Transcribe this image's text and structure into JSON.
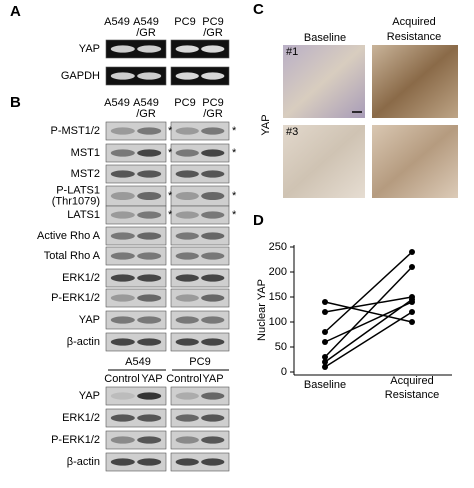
{
  "panel_a": {
    "label": "A",
    "lanes": [
      [
        "A549"
      ],
      [
        "A549",
        "/GR"
      ],
      [
        "PC9"
      ],
      [
        "PC9",
        "/GR"
      ]
    ],
    "rows": [
      "YAP",
      "GAPDH"
    ]
  },
  "panel_b": {
    "label": "B",
    "lanes": [
      [
        "A549"
      ],
      [
        "A549",
        "/GR"
      ],
      [
        "PC9"
      ],
      [
        "PC9",
        "/GR"
      ]
    ],
    "rows": [
      {
        "label": [
          "P-MST1/2"
        ],
        "note": "*"
      },
      {
        "label": [
          "MST1"
        ],
        "note": "*"
      },
      {
        "label": [
          "MST2"
        ]
      },
      {
        "label": [
          "P-LATS1",
          "(Thr1079)"
        ],
        "note": "*"
      },
      {
        "label": [
          "LATS1"
        ],
        "note": "*"
      },
      {
        "label": [
          "Active Rho A"
        ]
      },
      {
        "label": [
          "Total  Rho A"
        ]
      },
      {
        "label": [
          "ERK1/2"
        ]
      },
      {
        "label": [
          "P-ERK1/2"
        ]
      },
      {
        "label": [
          "YAP"
        ]
      },
      {
        "label": [
          "β-actin"
        ]
      }
    ]
  },
  "lower_blot": {
    "cell_lines": [
      "A549",
      "PC9"
    ],
    "conditions": [
      "Control",
      "YAP",
      "Control",
      "YAP"
    ],
    "rows": [
      "YAP",
      "ERK1/2",
      "P-ERK1/2",
      "β-actin"
    ]
  },
  "panel_c": {
    "label": "C",
    "columns": [
      [
        "Baseline"
      ],
      [
        "Acquired",
        "Resistance"
      ]
    ],
    "row_title": "YAP",
    "samples": [
      "#1",
      "#3"
    ]
  },
  "chart_data": {
    "type": "line",
    "panel_label": "D",
    "y_label": "Nuclear YAP",
    "categories": [
      "Baseline",
      [
        "Acquired",
        "Resistance"
      ]
    ],
    "color": "#000000",
    "ylim": [
      0,
      250
    ],
    "yticks": [
      0,
      50,
      100,
      150,
      200,
      250
    ],
    "series": [
      {
        "values": [
          140,
          100
        ]
      },
      {
        "values": [
          120,
          150
        ]
      },
      {
        "values": [
          80,
          240
        ]
      },
      {
        "values": [
          60,
          140
        ]
      },
      {
        "values": [
          30,
          210
        ]
      },
      {
        "values": [
          20,
          145
        ]
      },
      {
        "values": [
          10,
          120
        ]
      }
    ]
  }
}
